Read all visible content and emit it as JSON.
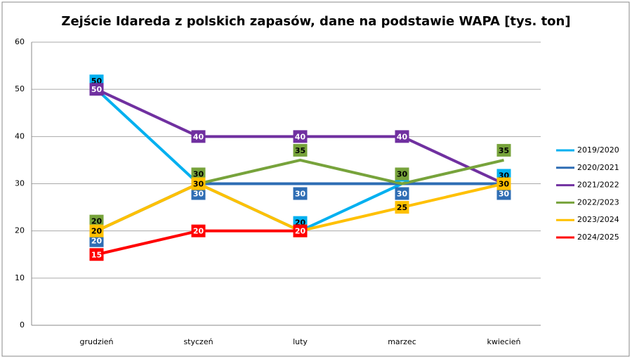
{
  "chart_data": {
    "type": "line",
    "title": "Zejście Idareda z polskich zapasów,  dane na podstawie WAPA [tys. ton]",
    "categories": [
      "grudzień",
      "styczeń",
      "luty",
      "marzec",
      "kwiecień"
    ],
    "series": [
      {
        "name": "2019/2020",
        "color": "#00b0f0",
        "values": [
          50,
          30,
          20,
          30,
          30
        ]
      },
      {
        "name": "2020/2021",
        "color": "#2e6db4",
        "values": [
          20,
          30,
          30,
          30,
          30
        ]
      },
      {
        "name": "2021/2022",
        "color": "#7030a0",
        "values": [
          50,
          40,
          40,
          40,
          30
        ]
      },
      {
        "name": "2022/2023",
        "color": "#77a33b",
        "values": [
          20,
          30,
          35,
          30,
          35
        ]
      },
      {
        "name": "2023/2024",
        "color": "#ffc000",
        "values": [
          20,
          30,
          20,
          25,
          30
        ]
      },
      {
        "name": "2024/2025",
        "color": "#ff0000",
        "values": [
          15,
          20,
          20,
          null,
          null
        ]
      }
    ],
    "ylim": [
      0,
      60
    ],
    "yticks": [
      0,
      10,
      20,
      30,
      40,
      50,
      60
    ],
    "grid": true,
    "legend": "right"
  }
}
